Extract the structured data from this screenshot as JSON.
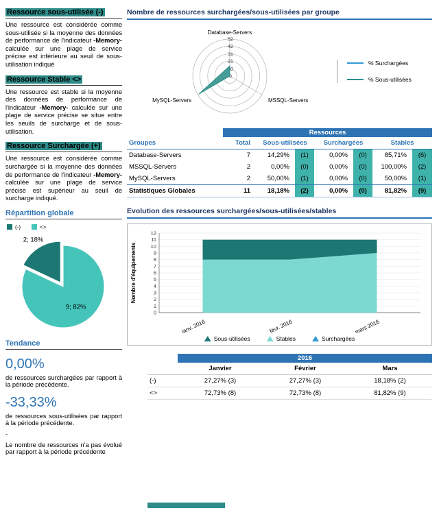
{
  "colors": {
    "accent_blue": "#2E74B5",
    "series_blue": "#2E9BD6",
    "dark_teal": "#1D7874",
    "light_teal": "#45C4BA",
    "stables_area": "#7CD9D2",
    "count_cell_bg": "#3FB3AB",
    "heading_highlight": "#2E8B88"
  },
  "sidebar": {
    "sections": [
      {
        "title": "Ressource sous-utilisée (-)",
        "before": "Une ressource est considérée comme sous-utilisée si la moyenne des données de performance de l'indicateur ",
        "bold": "-Memory-",
        "after": " calculée sur une plage de service précise est inférieure au seuil de sous-utilisation indiqué"
      },
      {
        "title": "Ressource Stable <>",
        "before": "Une ressource est stable si la moyenne des données de performance de l'indicateur ",
        "bold": "-Memory-",
        "after": " calculée sur une plage de service précise se situe entre les seuils de surcharge et de sous-utilisation."
      },
      {
        "title": "Ressource Surchargée (+)",
        "before": "Une ressource est considérée comme surchargée si la moyenne des données de performance de l'indicateur ",
        "bold": "-Memory-",
        "after": " calculée sur une plage de service précise est supérieur au seuil de surcharge indiqué."
      }
    ],
    "repartition": {
      "title": "Répartition globale",
      "legend": [
        {
          "label": "(-)",
          "color": "#1D7874"
        },
        {
          "label": "<>",
          "color": "#45C4BA"
        }
      ]
    },
    "tendance": {
      "title": "Tendance",
      "trend1_value": "0,00%",
      "trend1_caption": "de ressources surchargées par rapport à la période précédente.",
      "trend2_value": "-33,33%",
      "trend2_caption": "de ressources sous-utilisées par rapport à la période précédente.",
      "dash": "-",
      "note": "Le nombre de ressources n'a pas évolué par rapport à la période précédente"
    }
  },
  "main": {
    "radar_title": "Nombre de ressources surchargées/sous-utilisées par groupe",
    "radar_legend": [
      {
        "label": "% Surchargées",
        "color": "#2E9BD6"
      },
      {
        "label": "% Sous-utilisées",
        "color": "#2E8F8C"
      }
    ],
    "table1": {
      "header": "Ressources",
      "col_groupes": "Groupes",
      "col_total": "Total",
      "col_sous": "Sous-utilisées",
      "col_sur": "Surchargées",
      "col_stables": "Stables",
      "rows": [
        {
          "group": "Database-Servers",
          "total": "7",
          "sous_pct": "14,29%",
          "sous_n": "(1)",
          "sur_pct": "0,00%",
          "sur_n": "(0)",
          "stables_pct": "85,71%",
          "stables_n": "(6)"
        },
        {
          "group": "MSSQL-Servers",
          "total": "2",
          "sous_pct": "0,00%",
          "sous_n": "(0)",
          "sur_pct": "0,00%",
          "sur_n": "(0)",
          "stables_pct": "100,00%",
          "stables_n": "(2)"
        },
        {
          "group": "MySQL-Servers",
          "total": "2",
          "sous_pct": "50,00%",
          "sous_n": "(1)",
          "sur_pct": "0,00%",
          "sur_n": "(0)",
          "stables_pct": "50,00%",
          "stables_n": "(1)"
        }
      ],
      "total_row": {
        "group": "Statistiques Globales",
        "total": "11",
        "sous_pct": "18,18%",
        "sous_n": "(2)",
        "sur_pct": "0,00%",
        "sur_n": "(0)",
        "stables_pct": "81,82%",
        "stables_n": "(9)"
      }
    },
    "evolution_title": "Evolution des ressources surchargées/sous-utilisées/stables",
    "area_legend": [
      {
        "label": "Sous-utilisées",
        "color": "#1D7874"
      },
      {
        "label": "Stables",
        "color": "#7CD9D2"
      },
      {
        "label": "Surchargées",
        "color": "#2E9BD6"
      }
    ],
    "table2": {
      "header": "2016",
      "columns": [
        "Janvier",
        "Février",
        "Mars"
      ],
      "rows": [
        {
          "label": "(-)",
          "v1": "27,27% (3)",
          "v2": "27,27% (3)",
          "v3": "18,18% (2)"
        },
        {
          "label": "<>",
          "v1": "72,73% (8)",
          "v2": "72,73% (8)",
          "v3": "81,82% (9)"
        }
      ]
    }
  },
  "chart_data": [
    {
      "type": "pie",
      "title": "Répartition globale",
      "labels": [
        "(-)",
        "<>"
      ],
      "values": [
        18,
        82
      ],
      "counts": [
        2,
        9
      ],
      "slice_labels": [
        "2; 18%",
        "9; 82%"
      ],
      "colors": [
        "#1D7874",
        "#45C4BA"
      ],
      "exploded_slice": 0
    },
    {
      "type": "radar",
      "title": "Nombre de ressources surchargées/sous-utilisées par groupe",
      "categories": [
        "Database-Servers",
        "MSSQL-Servers",
        "MySQL-Servers"
      ],
      "rmax": 52,
      "ticks": [
        0,
        10,
        21,
        31,
        42,
        52
      ],
      "legend_position": "right",
      "series": [
        {
          "name": "% Surchargées",
          "color": "#2E9BD6",
          "values": [
            0,
            0,
            0
          ]
        },
        {
          "name": "% Sous-utilisées",
          "color": "#2E8F8C",
          "values": [
            14.29,
            0,
            50
          ]
        }
      ]
    },
    {
      "type": "area",
      "stacked": true,
      "title": "Evolution des ressources surchargées/sous-utilisées/stables",
      "x": [
        "janv. 2016",
        "févr. 2016",
        "mars 2016"
      ],
      "ylabel": "Nombre d'équipements",
      "ylim": [
        0,
        12
      ],
      "legend_position": "bottom",
      "series": [
        {
          "name": "Stables",
          "color": "#7CD9D2",
          "values": [
            8,
            8,
            9
          ]
        },
        {
          "name": "Sous-utilisées",
          "color": "#1D7874",
          "values": [
            3,
            3,
            2
          ]
        },
        {
          "name": "Surchargées",
          "color": "#2E9BD6",
          "values": [
            0,
            0,
            0
          ]
        }
      ]
    }
  ]
}
